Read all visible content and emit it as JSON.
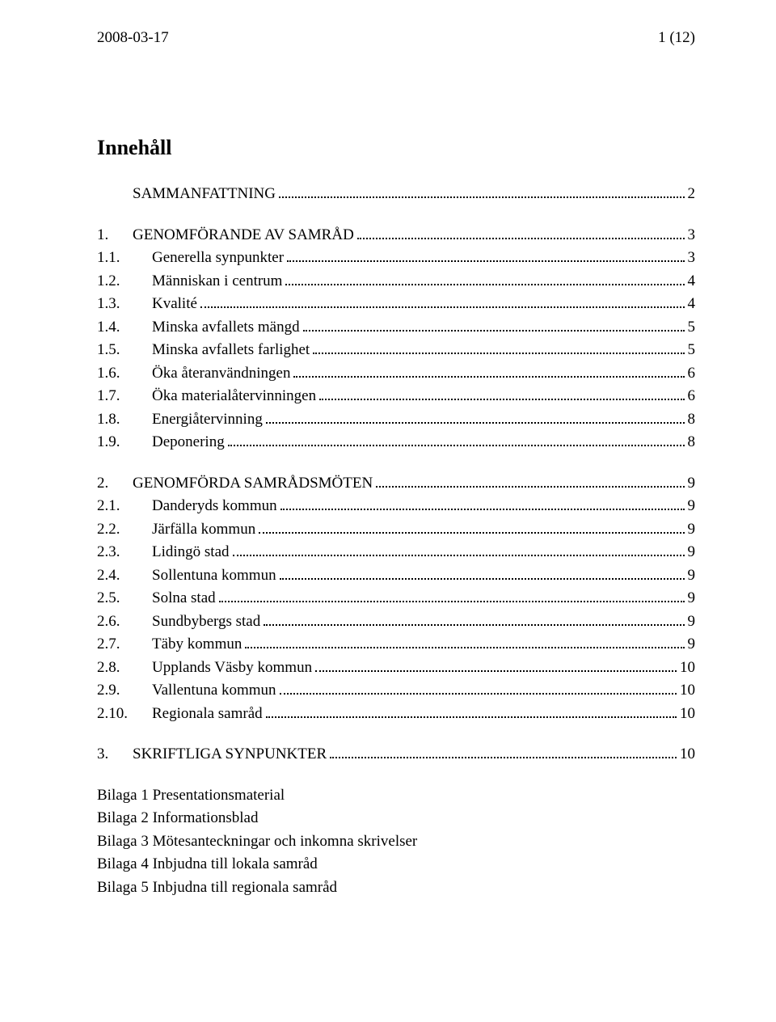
{
  "header": {
    "date": "2008-03-17",
    "page_indicator": "1 (12)"
  },
  "toc": {
    "title": "Innehåll",
    "entries": [
      {
        "level": 0,
        "num": "",
        "label": "SAMMANFATTNING",
        "page": "2",
        "gap_before": false
      },
      {
        "level": 0,
        "num": "1.",
        "label": "GENOMFÖRANDE AV SAMRÅD",
        "page": "3",
        "gap_before": true
      },
      {
        "level": 1,
        "num": "1.1.",
        "label": "Generella synpunkter",
        "page": "3",
        "gap_before": false
      },
      {
        "level": 1,
        "num": "1.2.",
        "label": "Människan i centrum",
        "page": "4",
        "gap_before": false
      },
      {
        "level": 1,
        "num": "1.3.",
        "label": "Kvalité",
        "page": "4",
        "gap_before": false
      },
      {
        "level": 1,
        "num": "1.4.",
        "label": "Minska avfallets mängd",
        "page": "5",
        "gap_before": false
      },
      {
        "level": 1,
        "num": "1.5.",
        "label": "Minska avfallets farlighet",
        "page": "5",
        "gap_before": false
      },
      {
        "level": 1,
        "num": "1.6.",
        "label": "Öka återanvändningen",
        "page": "6",
        "gap_before": false
      },
      {
        "level": 1,
        "num": "1.7.",
        "label": "Öka materialåtervinningen",
        "page": "6",
        "gap_before": false
      },
      {
        "level": 1,
        "num": "1.8.",
        "label": "Energiåtervinning",
        "page": "8",
        "gap_before": false
      },
      {
        "level": 1,
        "num": "1.9.",
        "label": "Deponering",
        "page": "8",
        "gap_before": false
      },
      {
        "level": 0,
        "num": "2.",
        "label": "GENOMFÖRDA SAMRÅDSMÖTEN",
        "page": "9",
        "gap_before": true
      },
      {
        "level": 1,
        "num": "2.1.",
        "label": "Danderyds kommun",
        "page": "9",
        "gap_before": false
      },
      {
        "level": 1,
        "num": "2.2.",
        "label": "Järfälla kommun",
        "page": "9",
        "gap_before": false
      },
      {
        "level": 1,
        "num": "2.3.",
        "label": "Lidingö stad",
        "page": "9",
        "gap_before": false
      },
      {
        "level": 1,
        "num": "2.4.",
        "label": "Sollentuna kommun",
        "page": "9",
        "gap_before": false
      },
      {
        "level": 1,
        "num": "2.5.",
        "label": "Solna stad",
        "page": "9",
        "gap_before": false
      },
      {
        "level": 1,
        "num": "2.6.",
        "label": "Sundbybergs stad",
        "page": "9",
        "gap_before": false
      },
      {
        "level": 1,
        "num": "2.7.",
        "label": "Täby kommun",
        "page": "9",
        "gap_before": false
      },
      {
        "level": 1,
        "num": "2.8.",
        "label": "Upplands Väsby kommun",
        "page": "10",
        "gap_before": false
      },
      {
        "level": 1,
        "num": "2.9.",
        "label": "Vallentuna kommun",
        "page": "10",
        "gap_before": false
      },
      {
        "level": 1,
        "num": "2.10.",
        "label": "Regionala samråd",
        "page": "10",
        "gap_before": false
      },
      {
        "level": 0,
        "num": "3.",
        "label": "SKRIFTLIGA SYNPUNKTER",
        "page": "10",
        "gap_before": true
      }
    ],
    "appendices": [
      "Bilaga 1 Presentationsmaterial",
      "Bilaga 2 Informationsblad",
      "Bilaga 3 Mötesanteckningar och inkomna skrivelser",
      "Bilaga 4 Inbjudna till lokala samråd",
      "Bilaga 5 Inbjudna till regionala samråd"
    ]
  }
}
